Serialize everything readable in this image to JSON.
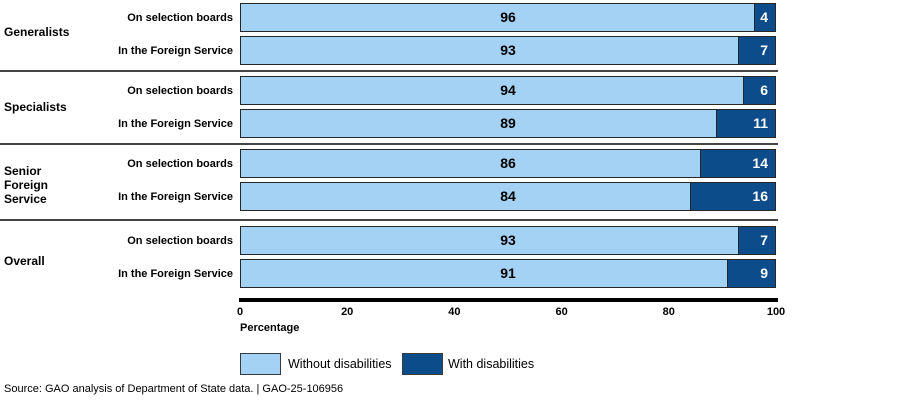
{
  "chart_data": {
    "type": "bar",
    "orientation": "horizontal",
    "stacked": true,
    "title": "",
    "xlabel": "Percentage",
    "xlim": [
      0,
      100
    ],
    "x_ticks": [
      0,
      20,
      40,
      60,
      80,
      100
    ],
    "series_names": [
      "Without disabilities",
      "With disabilities"
    ],
    "groups": [
      {
        "label": "Generalists",
        "rows": [
          {
            "label": "On selection boards",
            "without": 96,
            "with": 4
          },
          {
            "label": "In the Foreign Service",
            "without": 93,
            "with": 7
          }
        ]
      },
      {
        "label": "Specialists",
        "rows": [
          {
            "label": "On selection boards",
            "without": 94,
            "with": 6
          },
          {
            "label": "In the Foreign Service",
            "without": 89,
            "with": 11
          }
        ]
      },
      {
        "label": "Senior Foreign Service",
        "rows": [
          {
            "label": "On selection boards",
            "without": 86,
            "with": 14
          },
          {
            "label": "In the Foreign Service",
            "without": 84,
            "with": 16
          }
        ]
      },
      {
        "label": "Overall",
        "rows": [
          {
            "label": "On selection boards",
            "without": 93,
            "with": 7
          },
          {
            "label": "In the Foreign Service",
            "without": 91,
            "with": 9
          }
        ]
      }
    ]
  },
  "legend": {
    "items": [
      {
        "label": "Without disabilities",
        "color": "#A4D2F5"
      },
      {
        "label": "With disabilities",
        "color": "#0C4C8A"
      }
    ]
  },
  "colors": {
    "without_fill": "#A4D2F5",
    "with_fill": "#0C4C8A",
    "bar_border": "#262626",
    "axis_line": "#000000",
    "separator": "#454545"
  },
  "source_line": "Source: GAO analysis of Department of State data.  |  GAO-25-106956"
}
